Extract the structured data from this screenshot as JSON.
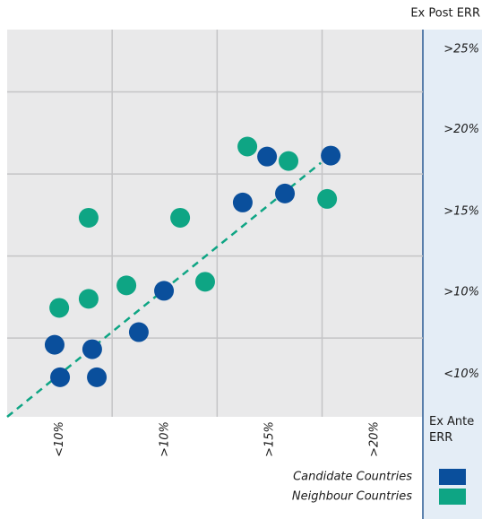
{
  "chart_data": {
    "type": "scatter",
    "x_label": "Ex Ante ERR",
    "y_label": "Ex Post ERR",
    "xlim": [
      5,
      24.8
    ],
    "ylim": [
      5.2,
      28.8
    ],
    "xticks": [
      {
        "value": 7.5,
        "label": "<10%"
      },
      {
        "value": 12.5,
        "label": ">10%"
      },
      {
        "value": 17.5,
        "label": ">15%"
      },
      {
        "value": 22.5,
        "label": ">20%"
      }
    ],
    "yticks": [
      {
        "value": 7.8,
        "label": "<10%"
      },
      {
        "value": 12.8,
        "label": ">10%"
      },
      {
        "value": 17.7,
        "label": ">15%"
      },
      {
        "value": 22.7,
        "label": ">20%"
      },
      {
        "value": 27.6,
        "label": ">25%"
      }
    ],
    "xgrid": [
      10,
      15,
      20
    ],
    "ygrid": [
      10,
      15,
      20,
      25
    ],
    "grid": true,
    "series": [
      {
        "name": "Candidate Countries",
        "color": "#0a4f9c",
        "x": [
          7.26,
          9.05,
          7.52,
          9.27,
          11.27,
          12.47,
          16.22,
          17.38,
          18.23,
          20.41
        ],
        "values": [
          9.59,
          9.32,
          7.61,
          7.61,
          10.36,
          12.88,
          18.26,
          21.06,
          18.81,
          21.12
        ]
      },
      {
        "name": "Neighbour Countries",
        "color": "#0ea584",
        "x": [
          7.48,
          8.88,
          8.88,
          10.68,
          13.24,
          14.43,
          16.44,
          18.4,
          20.24
        ],
        "values": [
          11.84,
          12.39,
          17.33,
          13.21,
          17.33,
          13.43,
          21.67,
          20.79,
          18.48
        ]
      }
    ],
    "trendline": {
      "color": "#0ea584",
      "x": [
        5,
        19.94
      ],
      "values": [
        5.2,
        20.68
      ]
    }
  }
}
